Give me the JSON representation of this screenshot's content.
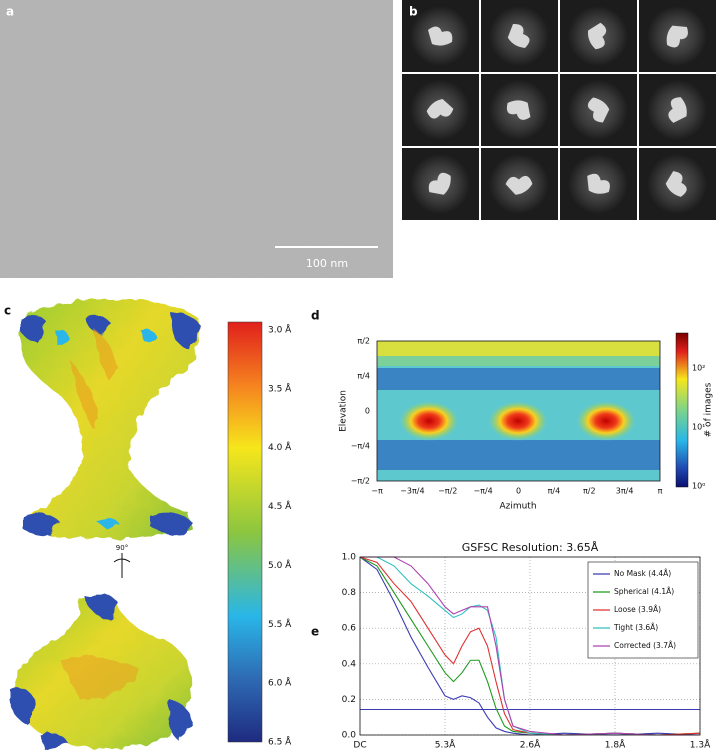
{
  "panel_a": {
    "label": "a",
    "scale_bar": "100 nm"
  },
  "panel_b": {
    "label": "b"
  },
  "panel_c": {
    "label": "c",
    "rotation": "90°",
    "colorbar_labels": [
      "3.0 Å",
      "3.5 Å",
      "4.0 Å",
      "4.5 Å",
      "5.0 Å",
      "5.5 Å",
      "6.0 Å",
      "6.5 Å"
    ]
  },
  "panel_d": {
    "label": "d",
    "y_label": "Elevation",
    "x_label": "Azimuth",
    "colorbar_label": "# of images",
    "yticks": [
      "π/2",
      "π/4",
      "0",
      "−π/4",
      "−π/2"
    ],
    "xticks": [
      "−π",
      "−3π/4",
      "−π/2",
      "−π/4",
      "0",
      "π/4",
      "π/2",
      "3π/4",
      "π"
    ],
    "colorbar_ticks": [
      "10²",
      "10¹",
      "10⁰"
    ]
  },
  "panel_e": {
    "label": "e"
  },
  "chart_data": {
    "type": "line",
    "title": "GSFSC Resolution: 3.65Å",
    "x": [
      0,
      0.2,
      0.4,
      0.6,
      0.8,
      1.0,
      1.1,
      1.2,
      1.3,
      1.4,
      1.5,
      1.6,
      1.7,
      1.8,
      2.0,
      2.4,
      3.0,
      3.5,
      4.0
    ],
    "series": [
      {
        "name": "No Mask (4.4Å)",
        "color": "#3b3bb3",
        "values": [
          1.0,
          0.93,
          0.75,
          0.55,
          0.38,
          0.22,
          0.2,
          0.22,
          0.21,
          0.18,
          0.1,
          0.04,
          0.02,
          0.01,
          0.0,
          0.01,
          0.0,
          0.01,
          0.0
        ]
      },
      {
        "name": "Spherical (4.1Å)",
        "color": "#1f9a1f",
        "values": [
          1.0,
          0.95,
          0.8,
          0.65,
          0.5,
          0.35,
          0.3,
          0.35,
          0.42,
          0.42,
          0.3,
          0.15,
          0.05,
          0.02,
          0.01,
          0.0,
          0.01,
          0.0,
          0.01
        ]
      },
      {
        "name": "Loose (3.9Å)",
        "color": "#e03030",
        "values": [
          1.0,
          0.97,
          0.85,
          0.75,
          0.6,
          0.45,
          0.4,
          0.5,
          0.58,
          0.6,
          0.5,
          0.3,
          0.12,
          0.03,
          0.01,
          0.0,
          0.01,
          0.0,
          0.01
        ]
      },
      {
        "name": "Tight (3.6Å)",
        "color": "#30c0c0",
        "values": [
          1.0,
          1.0,
          0.95,
          0.85,
          0.78,
          0.7,
          0.66,
          0.68,
          0.72,
          0.73,
          0.7,
          0.55,
          0.2,
          0.05,
          0.01,
          0.0,
          0.01,
          0.0,
          0.0
        ]
      },
      {
        "name": "Corrected (3.7Å)",
        "color": "#b040b0",
        "values": [
          1.0,
          1.0,
          1.0,
          0.95,
          0.85,
          0.72,
          0.68,
          0.7,
          0.72,
          0.72,
          0.72,
          0.5,
          0.2,
          0.05,
          0.02,
          0.0,
          0.01,
          0.0,
          0.0
        ]
      }
    ],
    "xlim": [
      0,
      4
    ],
    "ylim": [
      0,
      1
    ],
    "xticks": [
      {
        "value": 0,
        "label": "DC"
      },
      {
        "value": 1,
        "label": "5.3Å"
      },
      {
        "value": 2,
        "label": "2.6Å"
      },
      {
        "value": 3,
        "label": "1.8Å"
      },
      {
        "value": 4,
        "label": "1.3Å"
      }
    ],
    "yticks": [
      {
        "value": 0,
        "label": "0.0"
      },
      0.2,
      0.4,
      0.6,
      0.8,
      {
        "value": 1,
        "label": "1.0"
      }
    ],
    "threshold": 0.143,
    "threshold_color": "#3b3bb3",
    "grid": true
  }
}
